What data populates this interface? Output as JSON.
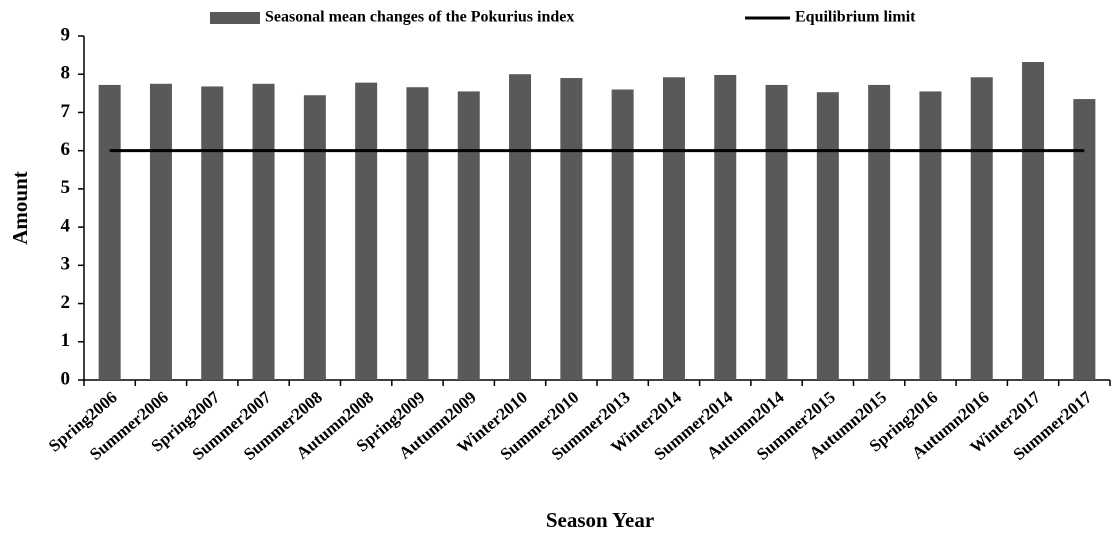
{
  "chart_data": {
    "type": "bar",
    "xlabel": "Season Year",
    "ylabel": "Amount",
    "categories": [
      "Spring2006",
      "Summer2006",
      "Spring2007",
      "Summer2007",
      "Summer2008",
      "Autumn2008",
      "Spring2009",
      "Autumn2009",
      "Winter2010",
      "Summer2010",
      "Summer2013",
      "Winter2014",
      "Summer2014",
      "Autumn2014",
      "Summer2015",
      "Autumn2015",
      "Spring2016",
      "Autumn2016",
      "Winter2017",
      "Summer2017"
    ],
    "series": [
      {
        "name": "Seasonal mean changes of the Pokurius index",
        "type": "bar",
        "color": "#595959",
        "values": [
          7.72,
          7.75,
          7.68,
          7.75,
          7.45,
          7.78,
          7.66,
          7.55,
          8.0,
          7.9,
          7.6,
          7.92,
          7.98,
          7.72,
          7.53,
          7.72,
          7.55,
          7.92,
          8.32,
          7.35
        ]
      },
      {
        "name": "Equilibrium limit",
        "type": "line",
        "color": "#000000",
        "values": [
          6,
          6,
          6,
          6,
          6,
          6,
          6,
          6,
          6,
          6,
          6,
          6,
          6,
          6,
          6,
          6,
          6,
          6,
          6,
          6
        ]
      }
    ],
    "ylim": [
      0,
      9
    ],
    "yticks": [
      0,
      1,
      2,
      3,
      4,
      5,
      6,
      7,
      8,
      9
    ],
    "grid": false,
    "legend": "top"
  }
}
